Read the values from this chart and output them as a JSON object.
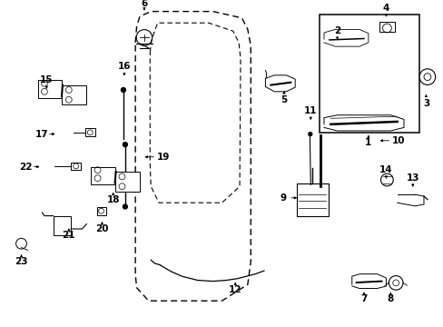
{
  "background": "#ffffff",
  "fig_width": 4.89,
  "fig_height": 3.6,
  "dpi": 100,
  "line_color": "#000000",
  "label_fontsize": 7.5,
  "parts_labels": {
    "1": [
      0.83,
      0.595,
      0.0,
      -0.025
    ],
    "2": [
      0.76,
      0.87,
      0.0,
      0.03
    ],
    "3": [
      0.96,
      0.72,
      0.0,
      -0.03
    ],
    "4": [
      0.87,
      0.94,
      0.0,
      0.03
    ],
    "5": [
      0.64,
      0.73,
      0.0,
      -0.03
    ],
    "6": [
      0.325,
      0.96,
      0.0,
      0.025
    ],
    "7": [
      0.82,
      0.115,
      0.0,
      -0.025
    ],
    "8": [
      0.88,
      0.115,
      0.0,
      -0.025
    ],
    "9": [
      0.675,
      0.395,
      -0.03,
      0.0
    ],
    "10": [
      0.85,
      0.57,
      0.04,
      0.0
    ],
    "11": [
      0.7,
      0.625,
      0.0,
      0.03
    ],
    "12": [
      0.53,
      0.145,
      0.0,
      -0.025
    ],
    "13": [
      0.93,
      0.42,
      0.0,
      0.03
    ],
    "14": [
      0.87,
      0.445,
      0.0,
      0.03
    ],
    "15": [
      0.105,
      0.72,
      0.0,
      0.03
    ],
    "16": [
      0.28,
      0.76,
      0.0,
      0.03
    ],
    "17": [
      0.13,
      0.59,
      -0.03,
      0.0
    ],
    "18": [
      0.255,
      0.42,
      0.0,
      -0.025
    ],
    "19": [
      0.32,
      0.52,
      0.04,
      0.0
    ],
    "20": [
      0.23,
      0.33,
      0.0,
      -0.025
    ],
    "21": [
      0.155,
      0.31,
      0.0,
      -0.025
    ],
    "22": [
      0.095,
      0.49,
      -0.03,
      0.0
    ],
    "23": [
      0.048,
      0.23,
      0.0,
      -0.025
    ]
  }
}
